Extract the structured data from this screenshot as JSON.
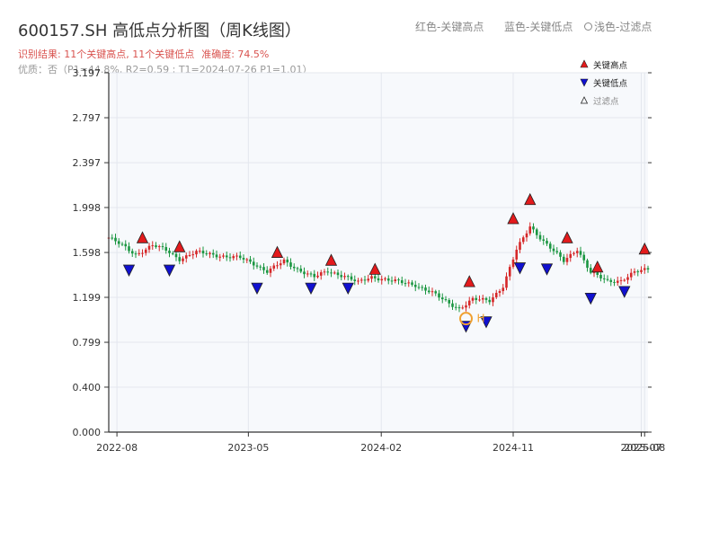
{
  "header": {
    "title": "600157.SH 高低点分析图（周K线图）",
    "result": "识别结果: 11个关键高点, 11个关键低点",
    "accuracy": "准确度: 74.5%",
    "quality": "优质：否（P1=44.8%, R2=0.59 ; T1=2024-07-26 P1=1.01）",
    "legend_red": "红色-关键高点",
    "legend_blue": "蓝色-关键低点",
    "legend_light": "浅色-过滤点"
  },
  "colors": {
    "up": "#d62728",
    "down": "#1a9641",
    "high_marker": "#e31a1c",
    "low_marker": "#1010d0",
    "filtered_marker": "#f0a030",
    "plot_bg": "#f7f9fc",
    "grid": "#e4e7ee"
  },
  "chart_data": {
    "type": "candlestick",
    "ylim": [
      0,
      3.197
    ],
    "yticks": [
      "0.000",
      "0.400",
      "0.799",
      "1.199",
      "1.598",
      "1.998",
      "2.397",
      "2.797",
      "3.197"
    ],
    "xlim": [
      "2022-07-15",
      "2025-08-08"
    ],
    "xticks": [
      {
        "date": "2022-08-01",
        "label": "2022-08"
      },
      {
        "date": "2023-05-01",
        "label": "2023-05"
      },
      {
        "date": "2024-02-01",
        "label": "2024-02"
      },
      {
        "date": "2024-11-01",
        "label": "2024-11"
      },
      {
        "date": "2025-07-25",
        "label": "2025-07"
      },
      {
        "date": "2025-08-01",
        "label": "2025-08"
      }
    ],
    "legend": {
      "position": "top-right",
      "entries": [
        {
          "label": "关键高点",
          "marker": "triangle-up",
          "color": "#e31a1c"
        },
        {
          "label": "关键低点",
          "marker": "triangle-down",
          "color": "#1010d0"
        },
        {
          "label": "过滤点",
          "marker": "triangle-up-hollow",
          "color": "#888888"
        }
      ]
    },
    "price_path": [
      [
        "2022-07-15",
        1.73
      ],
      [
        "2022-08-12",
        1.66
      ],
      [
        "2022-09-09",
        1.58
      ],
      [
        "2022-10-14",
        1.66
      ],
      [
        "2022-11-11",
        1.62
      ],
      [
        "2022-12-09",
        1.54
      ],
      [
        "2023-01-13",
        1.6
      ],
      [
        "2023-02-17",
        1.58
      ],
      [
        "2023-03-17",
        1.56
      ],
      [
        "2023-04-14",
        1.55
      ],
      [
        "2023-05-12",
        1.5
      ],
      [
        "2023-06-09",
        1.43
      ],
      [
        "2023-07-14",
        1.52
      ],
      [
        "2023-08-11",
        1.45
      ],
      [
        "2023-09-15",
        1.38
      ],
      [
        "2023-10-13",
        1.43
      ],
      [
        "2023-11-17",
        1.39
      ],
      [
        "2023-12-15",
        1.33
      ],
      [
        "2024-01-12",
        1.38
      ],
      [
        "2024-02-09",
        1.36
      ],
      [
        "2024-03-15",
        1.33
      ],
      [
        "2024-04-12",
        1.31
      ],
      [
        "2024-05-17",
        1.24
      ],
      [
        "2024-06-14",
        1.16
      ],
      [
        "2024-07-12",
        1.1
      ],
      [
        "2024-08-09",
        1.18
      ],
      [
        "2024-09-13",
        1.17
      ],
      [
        "2024-10-11",
        1.3
      ],
      [
        "2024-11-08",
        1.62
      ],
      [
        "2024-12-06",
        1.83
      ],
      [
        "2025-01-03",
        1.7
      ],
      [
        "2025-02-14",
        1.52
      ],
      [
        "2025-03-14",
        1.63
      ],
      [
        "2025-04-11",
        1.42
      ],
      [
        "2025-05-16",
        1.34
      ],
      [
        "2025-06-13",
        1.35
      ],
      [
        "2025-07-11",
        1.42
      ],
      [
        "2025-08-08",
        1.45
      ]
    ],
    "key_highs": [
      {
        "date": "2022-09-23",
        "value": 1.66
      },
      {
        "date": "2022-12-09",
        "value": 1.58
      },
      {
        "date": "2023-06-30",
        "value": 1.53
      },
      {
        "date": "2023-10-20",
        "value": 1.46
      },
      {
        "date": "2024-01-19",
        "value": 1.38
      },
      {
        "date": "2024-08-02",
        "value": 1.27
      },
      {
        "date": "2024-11-01",
        "value": 1.83
      },
      {
        "date": "2024-12-06",
        "value": 2.0
      },
      {
        "date": "2025-02-21",
        "value": 1.66
      },
      {
        "date": "2025-04-25",
        "value": 1.4
      },
      {
        "date": "2025-08-01",
        "value": 1.56
      }
    ],
    "key_lows": [
      {
        "date": "2022-08-26",
        "value": 1.51
      },
      {
        "date": "2022-11-18",
        "value": 1.51
      },
      {
        "date": "2023-05-19",
        "value": 1.35
      },
      {
        "date": "2023-09-08",
        "value": 1.35
      },
      {
        "date": "2023-11-24",
        "value": 1.35
      },
      {
        "date": "2024-07-26",
        "value": 1.01
      },
      {
        "date": "2024-09-06",
        "value": 1.05
      },
      {
        "date": "2024-11-15",
        "value": 1.53
      },
      {
        "date": "2025-01-10",
        "value": 1.52
      },
      {
        "date": "2025-04-11",
        "value": 1.26
      },
      {
        "date": "2025-06-20",
        "value": 1.32
      }
    ],
    "highlight": {
      "date": "2024-07-26",
      "value": 1.01,
      "label": "H"
    }
  }
}
